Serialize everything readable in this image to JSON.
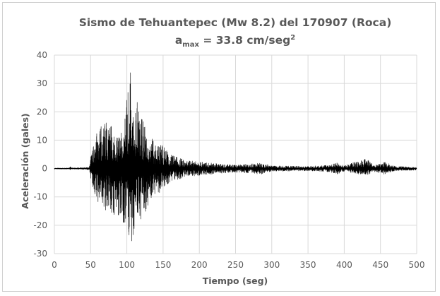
{
  "chart_data": {
    "type": "line",
    "title": "Sismo de Tehuantepec (Mw 8.2) del 170907 (Roca)",
    "subtitle": {
      "prefix": "a",
      "subscript": "max",
      "text": " = 33.8 cm/seg",
      "superscript": "2"
    },
    "xlabel": "Tiempo (seg)",
    "ylabel": "Aceleración (gales)",
    "xlim": [
      0,
      500
    ],
    "ylim": [
      -30,
      40
    ],
    "x_ticks": [
      0,
      50,
      100,
      150,
      200,
      250,
      300,
      350,
      400,
      450,
      500
    ],
    "y_ticks": [
      -30,
      -20,
      -10,
      0,
      10,
      20,
      30,
      40
    ],
    "grid": true,
    "legend": "none",
    "series": [
      {
        "line_color": "#000000",
        "peak_max": 33.8,
        "peak_min": -25.5,
        "x_step": 1,
        "envelope_upper": [
          [
            0,
            0.2
          ],
          [
            20,
            0.2
          ],
          [
            22,
            0.9
          ],
          [
            25,
            0.2
          ],
          [
            48,
            0.5
          ],
          [
            52,
            7
          ],
          [
            60,
            14
          ],
          [
            70,
            17
          ],
          [
            80,
            15
          ],
          [
            90,
            12
          ],
          [
            100,
            26
          ],
          [
            105,
            33.8
          ],
          [
            110,
            22
          ],
          [
            115,
            24
          ],
          [
            120,
            18
          ],
          [
            130,
            14
          ],
          [
            140,
            9
          ],
          [
            150,
            8
          ],
          [
            160,
            5
          ],
          [
            170,
            4
          ],
          [
            180,
            3
          ],
          [
            200,
            2.5
          ],
          [
            225,
            1.8
          ],
          [
            250,
            1.3
          ],
          [
            285,
            2
          ],
          [
            300,
            1
          ],
          [
            350,
            0.8
          ],
          [
            380,
            1.2
          ],
          [
            390,
            2
          ],
          [
            400,
            1
          ],
          [
            432,
            4
          ],
          [
            440,
            1
          ],
          [
            455,
            2.5
          ],
          [
            470,
            0.8
          ],
          [
            500,
            0.6
          ]
        ],
        "envelope_lower": [
          [
            0,
            -0.2
          ],
          [
            20,
            -0.2
          ],
          [
            22,
            -0.5
          ],
          [
            25,
            -0.2
          ],
          [
            48,
            -0.4
          ],
          [
            52,
            -6
          ],
          [
            60,
            -12
          ],
          [
            70,
            -15
          ],
          [
            80,
            -16
          ],
          [
            90,
            -17
          ],
          [
            100,
            -22
          ],
          [
            105,
            -25.5
          ],
          [
            110,
            -24
          ],
          [
            115,
            -18
          ],
          [
            120,
            -18
          ],
          [
            130,
            -14
          ],
          [
            140,
            -9
          ],
          [
            150,
            -8
          ],
          [
            160,
            -5
          ],
          [
            170,
            -4
          ],
          [
            180,
            -3
          ],
          [
            200,
            -2.5
          ],
          [
            225,
            -1.8
          ],
          [
            250,
            -1.3
          ],
          [
            285,
            -2
          ],
          [
            300,
            -1
          ],
          [
            350,
            -0.8
          ],
          [
            380,
            -1.2
          ],
          [
            390,
            -2
          ],
          [
            400,
            -1
          ],
          [
            432,
            -2.5
          ],
          [
            440,
            -1
          ],
          [
            455,
            -2
          ],
          [
            470,
            -0.8
          ],
          [
            500,
            -0.6
          ]
        ]
      }
    ]
  }
}
